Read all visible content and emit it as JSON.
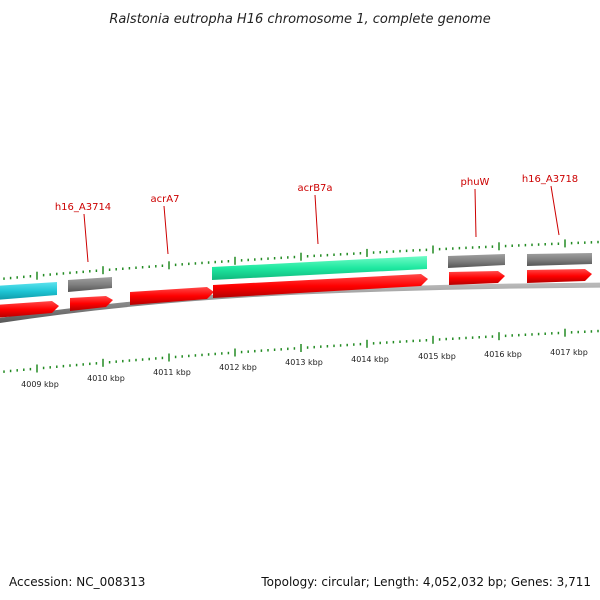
{
  "title": "Ralstonia eutropha H16 chromosome 1, complete genome",
  "footer": {
    "accession": "Accession: NC_008313",
    "summary": "Topology: circular; Length: 4,052,032 bp; Genes: 3,711"
  },
  "colors": {
    "label": "#cc0000",
    "tick": "#228B22",
    "backbone": "#808080",
    "feature_red": "#ff0000",
    "feature_gray": "#808080",
    "feature_cyan": "#1fc6d6",
    "feature_green": "#1fe8a0"
  },
  "ruler_labels": [
    "4009 kbp",
    "4010 kbp",
    "4011 kbp",
    "4012 kbp",
    "4013 kbp",
    "4014 kbp",
    "4015 kbp",
    "4016 kbp",
    "4017 kbp"
  ],
  "gene_labels": [
    "h16_A3714",
    "acrA7",
    "acrB7a",
    "phuW",
    "h16_A3718"
  ]
}
